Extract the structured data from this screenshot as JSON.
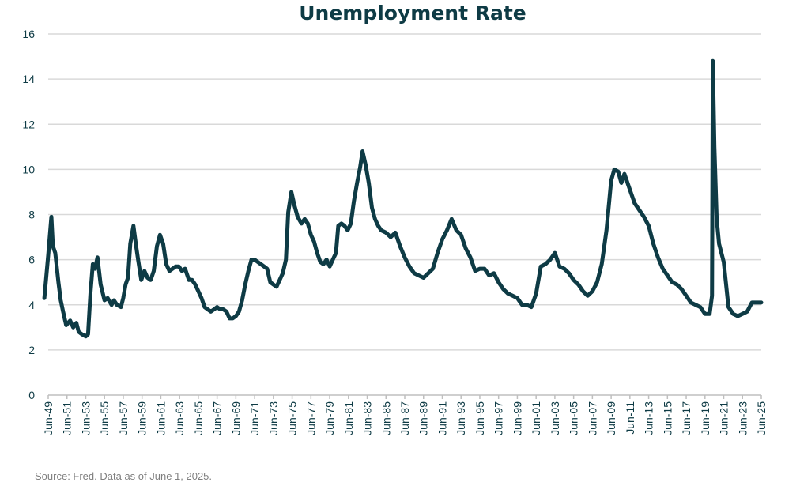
{
  "chart_data": {
    "type": "line",
    "title": "Unemployment Rate",
    "xlabel": "",
    "ylabel": "",
    "ylim": [
      0,
      16
    ],
    "yticks": [
      0,
      2,
      4,
      6,
      8,
      10,
      12,
      14,
      16
    ],
    "grid": "horizontal",
    "legend": "none",
    "source": "Source: Fred. Data as of June 1, 2025.",
    "colors": {
      "line": "#0e3b45",
      "grid": "#d9d9d9",
      "axis": "#bfbfbf",
      "text": "#0e3b45",
      "source": "#7f7f7f"
    },
    "xticks": [
      "Jun-49",
      "Jun-51",
      "Jun-53",
      "Jun-55",
      "Jun-57",
      "Jun-59",
      "Jun-61",
      "Jun-63",
      "Jun-65",
      "Jun-67",
      "Jun-69",
      "Jun-71",
      "Jun-73",
      "Jun-75",
      "Jun-77",
      "Jun-79",
      "Jun-81",
      "Jun-83",
      "Jun-85",
      "Jun-87",
      "Jun-89",
      "Jun-91",
      "Jun-93",
      "Jun-95",
      "Jun-97",
      "Jun-99",
      "Jun-01",
      "Jun-03",
      "Jun-05",
      "Jun-07",
      "Jun-09",
      "Jun-11",
      "Jun-13",
      "Jun-15",
      "Jun-17",
      "Jun-19",
      "Jun-21",
      "Jun-23",
      "Jun-25"
    ],
    "series": [
      {
        "x": [
          "1949-01",
          "1949-06",
          "1949-10",
          "1949-12",
          "1950-03",
          "1950-07",
          "1950-10",
          "1951-01",
          "1951-05",
          "1951-10",
          "1952-02",
          "1952-06",
          "1952-09",
          "1953-01",
          "1953-06",
          "1953-09",
          "1953-12",
          "1954-03",
          "1954-06",
          "1954-09",
          "1955-01",
          "1955-06",
          "1955-10",
          "1956-03",
          "1956-06",
          "1956-10",
          "1957-03",
          "1957-06",
          "1957-09",
          "1957-12",
          "1958-03",
          "1958-07",
          "1958-10",
          "1959-01",
          "1959-05",
          "1959-09",
          "1960-01",
          "1960-05",
          "1960-09",
          "1961-01",
          "1961-05",
          "1961-09",
          "1962-01",
          "1962-05",
          "1962-09",
          "1963-01",
          "1963-05",
          "1963-09",
          "1964-01",
          "1964-06",
          "1964-10",
          "1965-02",
          "1965-06",
          "1965-10",
          "1966-02",
          "1966-06",
          "1966-10",
          "1967-02",
          "1967-06",
          "1967-10",
          "1968-02",
          "1968-06",
          "1968-10",
          "1969-02",
          "1969-06",
          "1969-10",
          "1970-02",
          "1970-06",
          "1970-10",
          "1971-02",
          "1971-06",
          "1971-10",
          "1972-02",
          "1972-06",
          "1972-10",
          "1973-02",
          "1973-06",
          "1973-10",
          "1974-02",
          "1974-06",
          "1974-10",
          "1975-01",
          "1975-05",
          "1975-09",
          "1976-01",
          "1976-06",
          "1976-10",
          "1977-02",
          "1977-06",
          "1977-10",
          "1978-02",
          "1978-06",
          "1978-10",
          "1979-02",
          "1979-06",
          "1979-10",
          "1980-02",
          "1980-05",
          "1980-09",
          "1981-01",
          "1981-05",
          "1981-09",
          "1982-01",
          "1982-05",
          "1982-09",
          "1982-12",
          "1983-04",
          "1983-08",
          "1983-12",
          "1984-04",
          "1984-08",
          "1984-12",
          "1985-06",
          "1985-12",
          "1986-06",
          "1986-12",
          "1987-06",
          "1987-12",
          "1988-06",
          "1988-12",
          "1989-06",
          "1989-12",
          "1990-06",
          "1990-12",
          "1991-06",
          "1991-12",
          "1992-06",
          "1992-12",
          "1993-06",
          "1993-12",
          "1994-06",
          "1994-12",
          "1995-06",
          "1995-12",
          "1996-06",
          "1996-12",
          "1997-06",
          "1997-12",
          "1998-06",
          "1998-12",
          "1999-06",
          "1999-12",
          "2000-06",
          "2000-12",
          "2001-06",
          "2001-12",
          "2002-06",
          "2002-12",
          "2003-06",
          "2003-12",
          "2004-06",
          "2004-12",
          "2005-06",
          "2005-12",
          "2006-06",
          "2006-12",
          "2007-06",
          "2007-12",
          "2008-06",
          "2008-12",
          "2009-06",
          "2009-10",
          "2010-03",
          "2010-07",
          "2010-11",
          "2011-06",
          "2011-12",
          "2012-06",
          "2012-12",
          "2013-06",
          "2013-12",
          "2014-06",
          "2014-12",
          "2015-06",
          "2015-12",
          "2016-06",
          "2016-12",
          "2017-06",
          "2017-12",
          "2018-06",
          "2018-12",
          "2019-06",
          "2019-12",
          "2020-03",
          "2020-04",
          "2020-06",
          "2020-09",
          "2020-12",
          "2021-06",
          "2021-12",
          "2022-06",
          "2022-12",
          "2023-06",
          "2023-12",
          "2024-06",
          "2024-12",
          "2025-06"
        ],
        "values": [
          4.3,
          6.2,
          7.9,
          6.6,
          6.3,
          5.0,
          4.2,
          3.7,
          3.1,
          3.3,
          3.0,
          3.2,
          2.8,
          2.7,
          2.6,
          2.7,
          4.5,
          5.8,
          5.6,
          6.1,
          4.9,
          4.2,
          4.3,
          4.0,
          4.2,
          4.0,
          3.9,
          4.3,
          4.9,
          5.2,
          6.7,
          7.5,
          6.7,
          6.0,
          5.1,
          5.5,
          5.2,
          5.1,
          5.5,
          6.6,
          7.1,
          6.7,
          5.8,
          5.5,
          5.6,
          5.7,
          5.7,
          5.5,
          5.6,
          5.1,
          5.1,
          4.9,
          4.6,
          4.3,
          3.9,
          3.8,
          3.7,
          3.8,
          3.9,
          3.8,
          3.8,
          3.7,
          3.4,
          3.4,
          3.5,
          3.7,
          4.2,
          4.9,
          5.5,
          6.0,
          6.0,
          5.9,
          5.8,
          5.7,
          5.6,
          5.0,
          4.9,
          4.8,
          5.1,
          5.4,
          6.0,
          8.1,
          9.0,
          8.4,
          7.9,
          7.6,
          7.8,
          7.6,
          7.1,
          6.8,
          6.3,
          5.9,
          5.8,
          6.0,
          5.7,
          6.0,
          6.3,
          7.5,
          7.6,
          7.5,
          7.3,
          7.6,
          8.6,
          9.4,
          10.1,
          10.8,
          10.2,
          9.4,
          8.3,
          7.8,
          7.5,
          7.3,
          7.2,
          7.0,
          7.2,
          6.6,
          6.1,
          5.7,
          5.4,
          5.3,
          5.2,
          5.4,
          5.6,
          6.3,
          6.9,
          7.3,
          7.8,
          7.3,
          7.1,
          6.5,
          6.1,
          5.5,
          5.6,
          5.6,
          5.3,
          5.4,
          5.0,
          4.7,
          4.5,
          4.4,
          4.3,
          4.0,
          4.0,
          3.9,
          4.5,
          5.7,
          5.8,
          6.0,
          6.3,
          5.7,
          5.6,
          5.4,
          5.1,
          4.9,
          4.6,
          4.4,
          4.6,
          5.0,
          5.8,
          7.3,
          9.5,
          10.0,
          9.9,
          9.4,
          9.8,
          9.1,
          8.5,
          8.2,
          7.9,
          7.5,
          6.7,
          6.1,
          5.6,
          5.3,
          5.0,
          4.9,
          4.7,
          4.4,
          4.1,
          4.0,
          3.9,
          3.6,
          3.6,
          4.4,
          14.8,
          11.0,
          7.8,
          6.7,
          5.9,
          3.9,
          3.6,
          3.5,
          3.6,
          3.7,
          4.1,
          4.1,
          4.1
        ]
      }
    ]
  }
}
